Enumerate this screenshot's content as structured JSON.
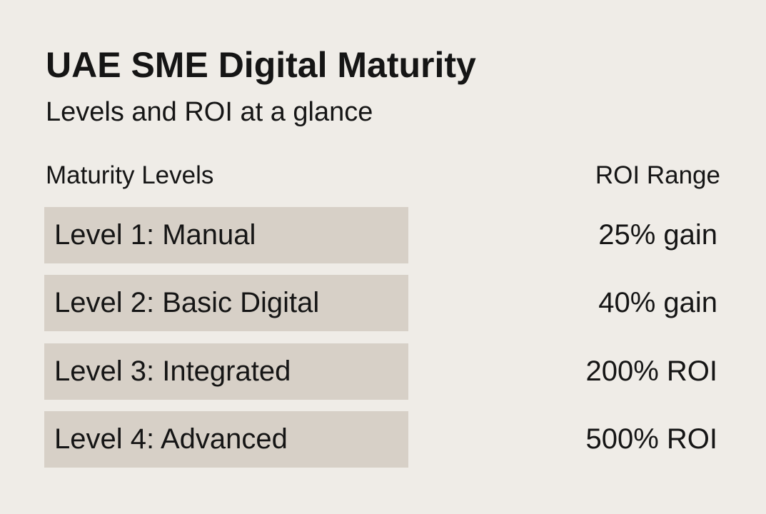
{
  "header": {
    "title": "UAE SME Digital Maturity",
    "subtitle": "Levels and ROI at a glance"
  },
  "table": {
    "columns": [
      "Maturity Levels",
      "ROI Range"
    ],
    "rows": [
      [
        "Level 1: Manual",
        "25% gain"
      ],
      [
        "Level 2: Basic Digital",
        "40% gain"
      ],
      [
        "Level 3: Integrated",
        "200% ROI"
      ],
      [
        "Level 4: Advanced",
        "500% ROI"
      ]
    ]
  }
}
